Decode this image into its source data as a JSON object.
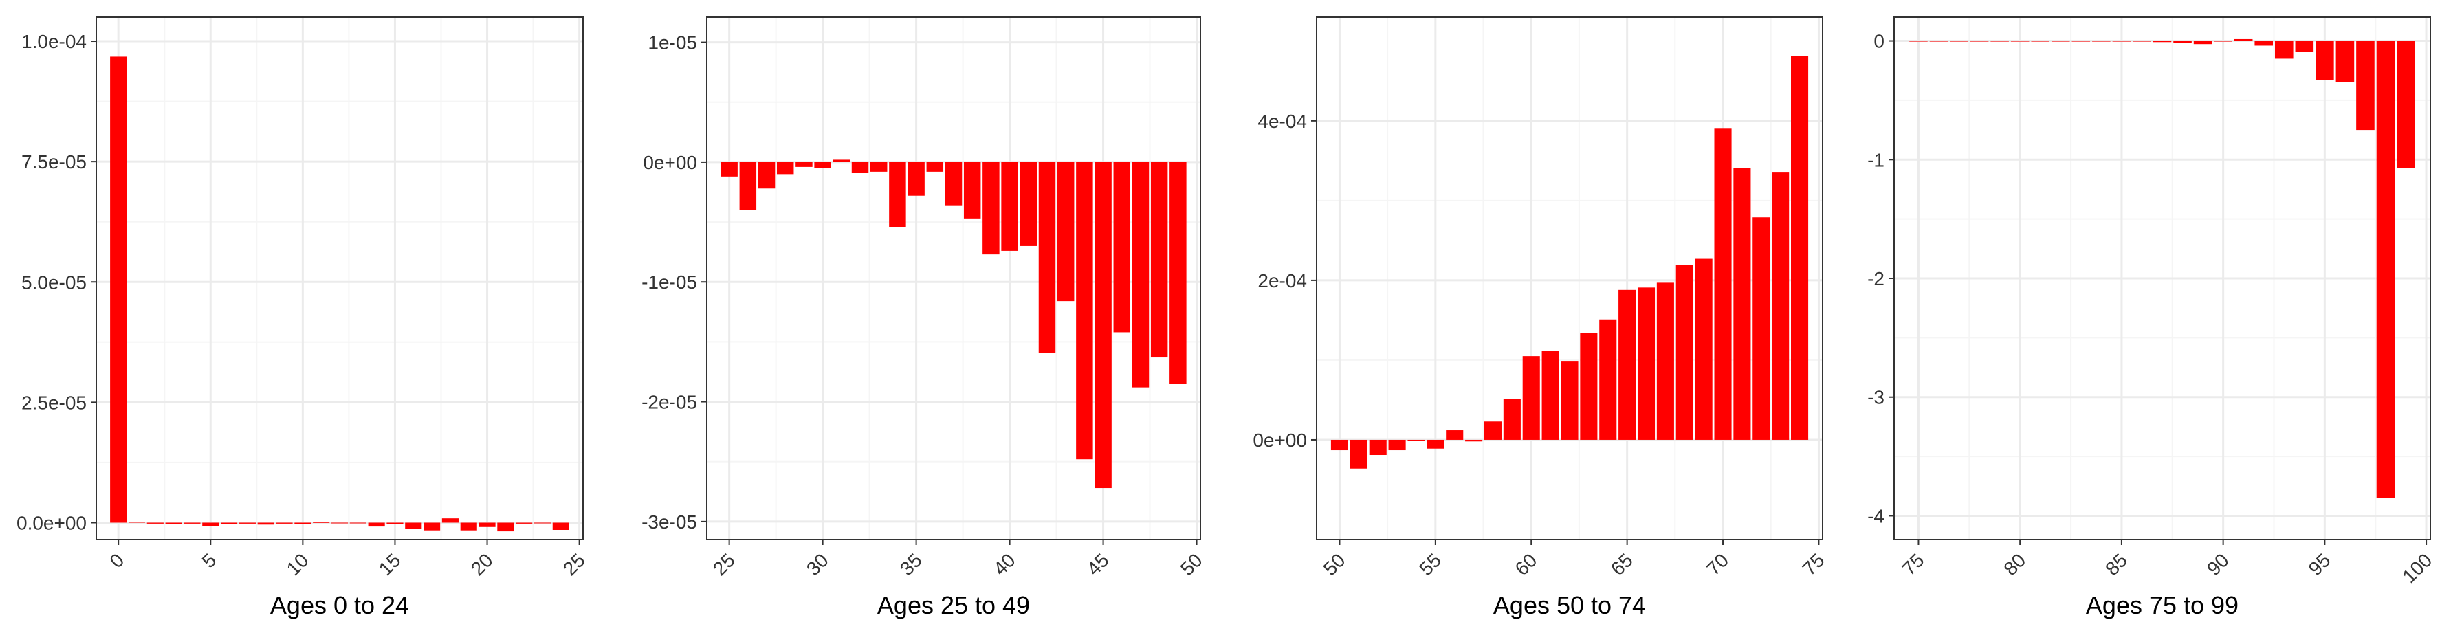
{
  "colors": {
    "bar": "#ff0000",
    "grid_major": "#ebebeb",
    "grid_minor": "#f5f5f5",
    "frame": "#333333",
    "zero_line": "#ff0000"
  },
  "chart_data": [
    {
      "type": "bar",
      "xlabel": "Ages 0 to 24",
      "ylabel": "",
      "grid": true,
      "xlim": [
        -1.2,
        25.2
      ],
      "ylim": [
        -3.5e-06,
        0.000105
      ],
      "x_ticks": [
        0,
        5,
        10,
        15,
        20,
        25
      ],
      "x_tick_labels": [
        "0",
        "5",
        "10",
        "15",
        "20",
        "25"
      ],
      "y_ticks": [
        0,
        2.5e-05,
        5e-05,
        7.5e-05,
        0.0001
      ],
      "y_tick_labels": [
        "0.0e+00",
        "2.5e-05",
        "5.0e-05",
        "7.5e-05",
        "1.0e-04"
      ],
      "x": [
        0,
        1,
        2,
        3,
        4,
        5,
        6,
        7,
        8,
        9,
        10,
        11,
        12,
        13,
        14,
        15,
        16,
        17,
        18,
        19,
        20,
        21,
        22,
        23,
        24
      ],
      "values": [
        9.68e-05,
        2e-07,
        -2e-07,
        -3e-07,
        -2e-07,
        -7e-07,
        -3e-07,
        -2e-07,
        -4e-07,
        -2e-07,
        -3e-07,
        1e-07,
        -1e-07,
        -1e-07,
        -8e-07,
        -3e-07,
        -1.3e-06,
        -1.6e-06,
        9e-07,
        -1.6e-06,
        -9e-07,
        -1.8e-06,
        -2e-07,
        0,
        -1.5e-06
      ]
    },
    {
      "type": "bar",
      "xlabel": "Ages 25 to 49",
      "ylabel": "",
      "grid": true,
      "xlim": [
        23.8,
        50.2
      ],
      "ylim": [
        -3.15e-05,
        1.21e-05
      ],
      "x_ticks": [
        25,
        30,
        35,
        40,
        45,
        50
      ],
      "x_tick_labels": [
        "25",
        "30",
        "35",
        "40",
        "45",
        "50"
      ],
      "y_ticks": [
        -3e-05,
        -2e-05,
        -1e-05,
        0,
        1e-05
      ],
      "y_tick_labels": [
        "-3e-05",
        "-2e-05",
        "-1e-05",
        "0e+00",
        "1e-05"
      ],
      "x": [
        25,
        26,
        27,
        28,
        29,
        30,
        31,
        32,
        33,
        34,
        35,
        36,
        37,
        38,
        39,
        40,
        41,
        42,
        43,
        44,
        45,
        46,
        47,
        48,
        49
      ],
      "values": [
        -1.2e-06,
        -4e-06,
        -2.2e-06,
        -1e-06,
        -4e-07,
        -5e-07,
        2e-07,
        -9e-07,
        -8e-07,
        -5.4e-06,
        -2.8e-06,
        -8e-07,
        -3.6e-06,
        -4.7e-06,
        -7.7e-06,
        -7.4e-06,
        -7e-06,
        -1.59e-05,
        -1.16e-05,
        -2.48e-05,
        -2.72e-05,
        -1.42e-05,
        -1.88e-05,
        -1.63e-05,
        -1.85e-05
      ]
    },
    {
      "type": "bar",
      "xlabel": "Ages 50 to 74",
      "ylabel": "",
      "grid": true,
      "xlim": [
        48.8,
        75.2
      ],
      "ylim": [
        -0.000125,
        0.00053
      ],
      "x_ticks": [
        50,
        55,
        60,
        65,
        70,
        75
      ],
      "x_tick_labels": [
        "50",
        "55",
        "60",
        "65",
        "70",
        "75"
      ],
      "y_ticks": [
        0,
        0.0002,
        0.0004
      ],
      "y_tick_labels": [
        "0e+00",
        "2e-04",
        "4e-04"
      ],
      "x": [
        50,
        51,
        52,
        53,
        54,
        55,
        56,
        57,
        58,
        59,
        60,
        61,
        62,
        63,
        64,
        65,
        66,
        67,
        68,
        69,
        70,
        71,
        72,
        73,
        74
      ],
      "values": [
        -1.3e-05,
        -3.6e-05,
        -1.9e-05,
        -1.3e-05,
        -1e-06,
        -1.1e-05,
        1.2e-05,
        -2e-06,
        2.3e-05,
        5.1e-05,
        0.000105,
        0.000112,
        9.9e-05,
        0.000134,
        0.000151,
        0.000188,
        0.000191,
        0.000197,
        0.000219,
        0.000227,
        0.000391,
        0.000341,
        0.000279,
        0.000336,
        0.000481
      ]
    },
    {
      "type": "bar",
      "xlabel": "Ages 75 to 99",
      "ylabel": "",
      "grid": true,
      "xlim": [
        73.8,
        100.2
      ],
      "ylim": [
        -4.2,
        0.2
      ],
      "x_ticks": [
        75,
        80,
        85,
        90,
        95,
        100
      ],
      "x_tick_labels": [
        "75",
        "80",
        "85",
        "90",
        "95",
        "100"
      ],
      "y_ticks": [
        -4,
        -3,
        -2,
        -1,
        0
      ],
      "y_tick_labels": [
        "-4",
        "-3",
        "-2",
        "-1",
        "0"
      ],
      "x": [
        75,
        76,
        77,
        78,
        79,
        80,
        81,
        82,
        83,
        84,
        85,
        86,
        87,
        88,
        89,
        90,
        91,
        92,
        93,
        94,
        95,
        96,
        97,
        98,
        99
      ],
      "values": [
        0,
        0,
        0,
        0,
        0,
        0,
        0,
        0,
        0,
        -0.002,
        -0.003,
        -0.005,
        -0.01,
        -0.018,
        -0.027,
        -0.004,
        0.015,
        -0.04,
        -0.15,
        -0.09,
        -0.33,
        -0.35,
        -0.75,
        -3.85,
        -1.07
      ]
    }
  ]
}
